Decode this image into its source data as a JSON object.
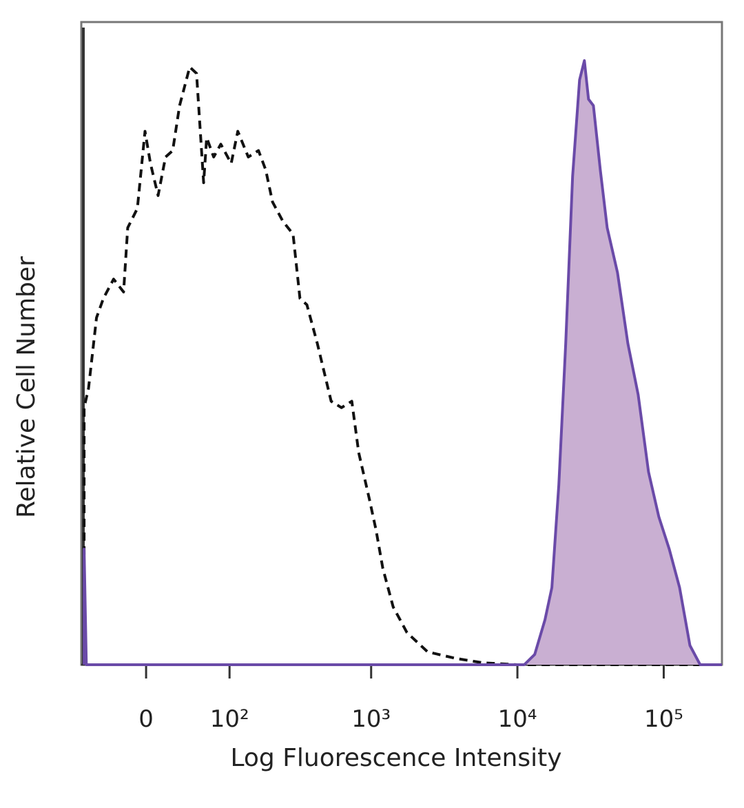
{
  "chart_data": {
    "type": "histogram-overlay",
    "x_label": "Log Fluorescence Intensity",
    "y_label": "Relative Cell Number",
    "xscale": "biexponential",
    "xlim": [
      -68,
      250000
    ],
    "ylim": [
      0,
      100
    ],
    "xticks": [
      0,
      {
        "value": 100,
        "label": "10²"
      },
      {
        "value": 1000,
        "label": "10³"
      },
      {
        "value": 10000,
        "label": "10⁴"
      },
      {
        "value": 100000,
        "label": "10⁵"
      }
    ],
    "series": [
      {
        "color": "#111111",
        "style": "dashed",
        "filled": false,
        "x": [
          -66,
          -66,
          -60,
          -50,
          -42,
          -31,
          -21,
          -17,
          -8,
          -1,
          4,
          11,
          18,
          25,
          32,
          43,
          51,
          60,
          64,
          74,
          85,
          103,
          116,
          139,
          165,
          186,
          208,
          246,
          290,
          324,
          362,
          427,
          532,
          626,
          737,
          822,
          967,
          1079,
          1202,
          1415,
          1760,
          2434,
          3762,
          5810,
          10000,
          233000
        ],
        "values": [
          0,
          40,
          43,
          54,
          57,
          60,
          58,
          68,
          71,
          83,
          78,
          73,
          79,
          80,
          87,
          93,
          92,
          75,
          82,
          79,
          81,
          78,
          83,
          79,
          80,
          77,
          72,
          69,
          67,
          57,
          56,
          50,
          41,
          40,
          41,
          33,
          26,
          21,
          15,
          9,
          5,
          2,
          1,
          0.3,
          0,
          0
        ]
      },
      {
        "color": "#6a4aa8",
        "fill": "#c9afd2",
        "style": "solid",
        "filled": true,
        "x": [
          -66,
          -66,
          -63,
          11136,
          13125,
          15434,
          17209,
          19186,
          21396,
          23844,
          26593,
          28693,
          30624,
          33060,
          36859,
          41064,
          48314,
          56840,
          66874,
          78706,
          92626,
          109040,
          128296,
          150974,
          177480,
          250000
        ],
        "values": [
          0,
          18,
          0,
          0,
          1.6,
          7,
          12,
          28,
          50,
          76,
          91,
          94,
          88,
          87,
          77,
          68,
          61,
          50,
          42,
          30,
          23,
          18,
          12,
          3,
          0,
          0
        ]
      }
    ]
  }
}
